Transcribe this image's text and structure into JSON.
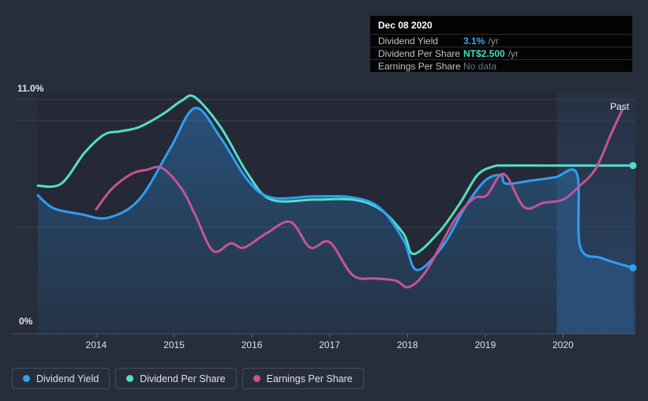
{
  "page": {
    "background": "#272d3a"
  },
  "tooltip": {
    "date": "Dec 08 2020",
    "rows": [
      {
        "label": "Dividend Yield",
        "value": "3.1%",
        "suffix": "/yr",
        "value_color": "#36a9f4"
      },
      {
        "label": "Dividend Per Share",
        "value": "NT$2.500",
        "suffix": "/yr",
        "value_color": "#43dfc2"
      },
      {
        "label": "Earnings Per Share",
        "value": "No data",
        "suffix": "",
        "value_color": "#70767e"
      }
    ]
  },
  "legend": {
    "items": [
      {
        "label": "Dividend Yield",
        "color": "#2f9ff3"
      },
      {
        "label": "Dividend Per Share",
        "color": "#52dfc5"
      },
      {
        "label": "Earnings Per Share",
        "color": "#cf4f92"
      }
    ]
  },
  "labels": {
    "past": "Past",
    "y_max": "11.0%",
    "y_min": "0%"
  },
  "chart_data": {
    "type": "line",
    "title": "Dividend history chart (yield %, dividend per share, earnings per share)",
    "x_axis": {
      "range": [
        2013.25,
        2020.93
      ],
      "ticks": [
        2014,
        2015,
        2016,
        2017,
        2018,
        2019,
        2020
      ],
      "tick_labels": [
        "2014",
        "2015",
        "2016",
        "2017",
        "2018",
        "2019",
        "2020"
      ]
    },
    "y_axis": {
      "unit": "%",
      "range": [
        0,
        11
      ],
      "label_top": "11.0%",
      "label_bottom": "0%",
      "gridlines_pct": [
        11,
        10,
        5
      ]
    },
    "past_region": {
      "x_start": 2019.92,
      "x_end": 2020.93,
      "label": "Past"
    },
    "grid": true,
    "legend_position": "bottom-left",
    "series": [
      {
        "name": "Dividend Yield",
        "color": "#2f9ff3",
        "end_dot": true,
        "area_fill": true,
        "points": [
          [
            2013.25,
            6.5
          ],
          [
            2013.45,
            5.9
          ],
          [
            2013.8,
            5.62
          ],
          [
            2014.15,
            5.45
          ],
          [
            2014.55,
            6.3
          ],
          [
            2014.95,
            8.7
          ],
          [
            2015.27,
            10.6
          ],
          [
            2015.6,
            9.2
          ],
          [
            2015.95,
            7.2
          ],
          [
            2016.25,
            6.4
          ],
          [
            2016.8,
            6.45
          ],
          [
            2017.3,
            6.4
          ],
          [
            2017.65,
            5.9
          ],
          [
            2017.95,
            4.4
          ],
          [
            2018.12,
            3.0
          ],
          [
            2018.45,
            4.1
          ],
          [
            2018.75,
            6.0
          ],
          [
            2019.0,
            7.2
          ],
          [
            2019.2,
            7.45
          ],
          [
            2019.27,
            7.05
          ],
          [
            2019.6,
            7.2
          ],
          [
            2019.9,
            7.35
          ],
          [
            2020.18,
            7.5
          ],
          [
            2020.22,
            4.1
          ],
          [
            2020.5,
            3.55
          ],
          [
            2020.9,
            3.1
          ]
        ]
      },
      {
        "name": "Dividend Per Share",
        "color": "#52dfc5",
        "end_dot": true,
        "area_fill": false,
        "points": [
          [
            2013.25,
            6.95
          ],
          [
            2013.55,
            7.05
          ],
          [
            2013.85,
            8.5
          ],
          [
            2014.1,
            9.35
          ],
          [
            2014.3,
            9.5
          ],
          [
            2014.55,
            9.7
          ],
          [
            2014.85,
            10.3
          ],
          [
            2015.1,
            10.95
          ],
          [
            2015.27,
            11.1
          ],
          [
            2015.6,
            9.7
          ],
          [
            2015.95,
            7.5
          ],
          [
            2016.25,
            6.3
          ],
          [
            2016.8,
            6.3
          ],
          [
            2017.3,
            6.3
          ],
          [
            2017.65,
            5.85
          ],
          [
            2017.95,
            4.7
          ],
          [
            2018.08,
            3.75
          ],
          [
            2018.4,
            4.75
          ],
          [
            2018.67,
            6.1
          ],
          [
            2018.9,
            7.45
          ],
          [
            2019.1,
            7.85
          ],
          [
            2019.25,
            7.9
          ],
          [
            2019.7,
            7.9
          ],
          [
            2020.2,
            7.9
          ],
          [
            2020.9,
            7.9
          ]
        ]
      },
      {
        "name": "Earnings Per Share",
        "color": "#c75397",
        "end_dot": false,
        "area_fill": false,
        "points": [
          [
            2014.0,
            5.85
          ],
          [
            2014.2,
            6.8
          ],
          [
            2014.45,
            7.5
          ],
          [
            2014.65,
            7.7
          ],
          [
            2014.85,
            7.78
          ],
          [
            2015.1,
            6.8
          ],
          [
            2015.27,
            5.6
          ],
          [
            2015.5,
            3.9
          ],
          [
            2015.73,
            4.25
          ],
          [
            2015.9,
            4.05
          ],
          [
            2016.2,
            4.75
          ],
          [
            2016.5,
            5.25
          ],
          [
            2016.75,
            4.05
          ],
          [
            2017.0,
            4.3
          ],
          [
            2017.3,
            2.75
          ],
          [
            2017.6,
            2.6
          ],
          [
            2017.85,
            2.5
          ],
          [
            2018.02,
            2.2
          ],
          [
            2018.25,
            3.0
          ],
          [
            2018.6,
            5.3
          ],
          [
            2018.85,
            6.35
          ],
          [
            2019.02,
            6.5
          ],
          [
            2019.24,
            7.5
          ],
          [
            2019.5,
            5.95
          ],
          [
            2019.75,
            6.15
          ],
          [
            2020.0,
            6.3
          ],
          [
            2020.2,
            6.9
          ],
          [
            2020.42,
            7.75
          ],
          [
            2020.62,
            9.4
          ],
          [
            2020.76,
            10.5
          ]
        ]
      }
    ]
  }
}
